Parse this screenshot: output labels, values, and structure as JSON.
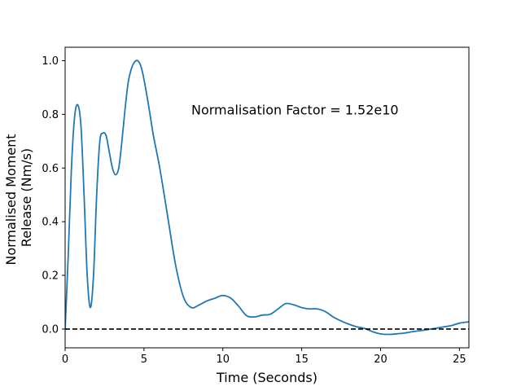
{
  "chart_data": {
    "type": "line",
    "title": "",
    "xlabel": "Time (Seconds)",
    "ylabel_lines": [
      "Normalised Moment",
      "Release (Nm/s)"
    ],
    "xlim": [
      0,
      25.6
    ],
    "ylim": [
      -0.07,
      1.05
    ],
    "xticks": [
      0,
      5,
      10,
      15,
      20,
      25
    ],
    "yticks": [
      0.0,
      0.2,
      0.4,
      0.6,
      0.8,
      1.0
    ],
    "xtick_labels": [
      "0",
      "5",
      "10",
      "15",
      "20",
      "25"
    ],
    "ytick_labels": [
      "0.0",
      "0.2",
      "0.4",
      "0.6",
      "0.8",
      "1.0"
    ],
    "grid": false,
    "annotation": "Normalisation Factor = 1.52e10",
    "baseline": {
      "y": 0.0,
      "style": "dashed",
      "color": "#000000"
    },
    "series": [
      {
        "color": "#1f77b4",
        "x": [
          0,
          0.2,
          0.4,
          0.6,
          0.8,
          1.0,
          1.2,
          1.4,
          1.6,
          1.8,
          2.0,
          2.2,
          2.4,
          2.6,
          2.8,
          3.0,
          3.2,
          3.4,
          3.6,
          3.8,
          4.0,
          4.2,
          4.4,
          4.6,
          4.8,
          5.0,
          5.3,
          5.6,
          6.0,
          6.5,
          7.0,
          7.5,
          8.0,
          8.5,
          9.0,
          9.5,
          10.0,
          10.5,
          11.0,
          11.5,
          12.0,
          12.5,
          13.0,
          13.5,
          14.0,
          14.5,
          15.0,
          15.5,
          16.0,
          16.5,
          17.0,
          17.5,
          18.0,
          18.5,
          19.0,
          19.5,
          20.0,
          20.5,
          21.0,
          21.5,
          22.0,
          22.5,
          23.0,
          23.5,
          24.0,
          24.5,
          25.0,
          25.6
        ],
        "y": [
          0.0,
          0.28,
          0.6,
          0.79,
          0.835,
          0.76,
          0.5,
          0.2,
          0.08,
          0.2,
          0.5,
          0.7,
          0.73,
          0.72,
          0.66,
          0.6,
          0.575,
          0.6,
          0.7,
          0.82,
          0.92,
          0.97,
          0.995,
          1.0,
          0.98,
          0.93,
          0.83,
          0.72,
          0.6,
          0.42,
          0.24,
          0.12,
          0.08,
          0.09,
          0.105,
          0.115,
          0.125,
          0.115,
          0.085,
          0.05,
          0.045,
          0.052,
          0.055,
          0.075,
          0.095,
          0.09,
          0.08,
          0.075,
          0.075,
          0.065,
          0.045,
          0.03,
          0.018,
          0.008,
          0.002,
          -0.01,
          -0.018,
          -0.02,
          -0.018,
          -0.015,
          -0.01,
          -0.006,
          -0.002,
          0.003,
          0.008,
          0.013,
          0.022,
          0.027
        ]
      }
    ]
  }
}
